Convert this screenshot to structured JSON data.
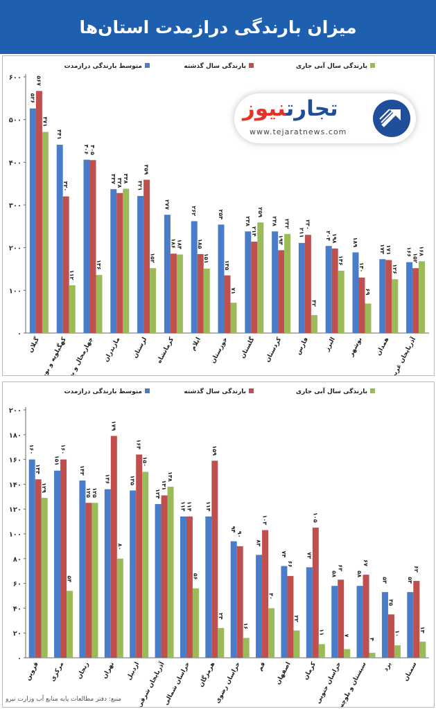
{
  "header": {
    "title": "میزان بارندگی درازمدت استان‌ها"
  },
  "logo": {
    "name_part1": "تجارت",
    "name_part2": "نیوز",
    "url": "www.tejaratnews.com",
    "icon": "arrow-circle-logo-icon"
  },
  "source": "منبع: دفتر مطالعات پایه منابع آب وزارت نیرو",
  "colors": {
    "header_bg": "#1f5fb0",
    "long_term": "#4a7dc9",
    "last_year": "#c0504d",
    "current_year": "#9bbb59"
  },
  "chart_data": [
    {
      "type": "bar",
      "categories": [
        "گیلان",
        "کهگیلویه و بویراحمد",
        "چهارمحال و بختیاری",
        "مازندران",
        "لرستان",
        "کرمانشاه",
        "ایلام",
        "خوزستان",
        "گلستان",
        "کردستان",
        "فارس",
        "البرز",
        "بوشهر",
        "همدان",
        "آذربایجان غربی"
      ],
      "series": [
        {
          "name": "متوسط بارندگی درازمدت",
          "values": [
            526,
            441,
            406,
            337,
            321,
            277,
            262,
            254,
            238,
            238,
            211,
            204,
            189,
            173,
            166
          ]
        },
        {
          "name": "بارندگی سال گذشته",
          "values": [
            567,
            320,
            405,
            328,
            359,
            186,
            185,
            135,
            214,
            194,
            230,
            198,
            130,
            171,
            152
          ]
        },
        {
          "name": "بارندگی سال آبی جاری",
          "values": [
            471,
            112,
            136,
            338,
            152,
            184,
            151,
            71,
            259,
            232,
            42,
            146,
            69,
            126,
            168
          ]
        }
      ],
      "data_labels": {
        "long_term": [
          "۵۲۶",
          "۴۴۱",
          "۴۰۶",
          "۳۳۷",
          "۳۲۱",
          "۲۷۷",
          "۲۶۲",
          "۲۵۴",
          "۲۳۸",
          "۲۳۸",
          "۲۱۱",
          "۲۰۴",
          "۱۸۹",
          "۱۷۳",
          "۱۶۶"
        ],
        "last_year": [
          "۵۶۷",
          "۳۲۰",
          "۴۰۵",
          "۳۲۸",
          "۳۵۹",
          "۱۸۶",
          "۱۸۵",
          "۱۳۵",
          "۲۱۴",
          "۱۹۴",
          "۲۳۰",
          "۱۹۸",
          "۱۳۰",
          "۱۷۱",
          "۱۵۲"
        ],
        "current_year": [
          "۴۷۱",
          "۱۱۲",
          "۱۳۶",
          "۳۳۸",
          "۱۵۲",
          "۱۸۴",
          "۱۵۱",
          "۷۱",
          "۲۵۹",
          "۲۳۲",
          "۴۲",
          "۱۴۶",
          "۶۹",
          "۱۲۶",
          "۱۶۸"
        ]
      },
      "yticks": [
        "۰",
        "۱۰۰",
        "۲۰۰",
        "۳۰۰",
        "۴۰۰",
        "۵۰۰",
        "۶۰۰"
      ],
      "ylim": [
        0,
        600
      ],
      "grid": false,
      "legend_position": "top"
    },
    {
      "type": "bar",
      "categories": [
        "قزوین",
        "مرکزی",
        "زنجان",
        "تهران",
        "اردبیل",
        "آذربایجان شرقی",
        "خراسان شمالی",
        "هرمزگان",
        "خراسان رضوی",
        "قم",
        "اصفهان",
        "کرمان",
        "خراسان جنوبی",
        "سیستان و بلوچستان",
        "یزد",
        "سمنان"
      ],
      "series": [
        {
          "name": "متوسط بارندگی درازمدت",
          "values": [
            160,
            151,
            143,
            136,
            135,
            124,
            114,
            114,
            94,
            83,
            74,
            73,
            58,
            58,
            53,
            53
          ]
        },
        {
          "name": "بارندگی سال گذشته",
          "values": [
            144,
            160,
            125,
            179,
            164,
            131,
            114,
            159,
            90,
            103,
            66,
            105,
            63,
            67,
            35,
            62
          ]
        },
        {
          "name": "بارندگی سال آبی جاری",
          "values": [
            129,
            54,
            125,
            80,
            150,
            138,
            56,
            24,
            16,
            40,
            22,
            11,
            7,
            4,
            10,
            13
          ]
        }
      ],
      "data_labels": {
        "long_term": [
          "۱۶۰",
          "۱۵۱",
          "۱۴۳",
          "۱۳۶",
          "۱۳۵",
          "۱۲۴",
          "۱۱۴",
          "۱۱۴",
          "۹۴",
          "۸۳",
          "۷۴",
          "۷۳",
          "۵۸",
          "۵۸",
          "۵۳",
          "۵۳"
        ],
        "last_year": [
          "۱۴۴",
          "۱۶۰",
          "۱۲۵",
          "۱۷۹",
          "۱۶۴",
          "۱۳۱",
          "۱۱۴",
          "۱۵۹",
          "۹۰",
          "۱۰۳",
          "۶۶",
          "۱۰۵",
          "۶۳",
          "۶۷",
          "۳۵",
          "۶۲"
        ],
        "current_year": [
          "۱۲۹",
          "۵۴",
          "۱۲۵",
          "۸۰",
          "۱۵۰",
          "۱۳۸",
          "۵۶",
          "۲۴",
          "۱۶",
          "۴۰",
          "۲۲",
          "۱۱",
          "۷",
          "۴",
          "۱۰",
          "۱۳"
        ]
      },
      "yticks": [
        "۰",
        "۲۰",
        "۴۰",
        "۶۰",
        "۸۰",
        "۱۰۰",
        "۱۲۰",
        "۱۴۰",
        "۱۶۰",
        "۱۸۰",
        "۲۰۰"
      ],
      "ylim": [
        0,
        200
      ],
      "grid": false,
      "legend_position": "top"
    }
  ]
}
